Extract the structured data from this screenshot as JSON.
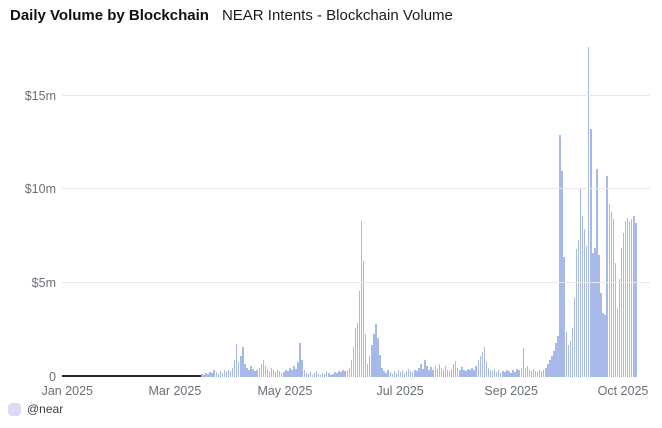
{
  "header": {
    "title": "Daily Volume by Blockchain",
    "subtitle": "NEAR Intents - Blockchain Volume"
  },
  "legend": {
    "items": [
      {
        "label": "@near",
        "swatch_color": "#dcdcf5"
      }
    ]
  },
  "chart_data": {
    "type": "bar",
    "title": "Daily Volume by Blockchain",
    "subtitle": "NEAR Intents - Blockchain Volume",
    "series_name": "@near",
    "unit": "USD millions per day",
    "x_start": "Jan 2025",
    "x_end": "Oct 2025",
    "ylim": [
      0,
      17.7
    ],
    "grid": true,
    "legend_position": "bottom-left",
    "bar_color": "#a7b9e9",
    "zero_line": {
      "color": "#2a2a2e",
      "span_index": [
        0,
        67
      ]
    },
    "yticks": [
      {
        "label": "0",
        "value": 0,
        "gridline": false
      },
      {
        "label": "$5m",
        "value": 5,
        "gridline": true
      },
      {
        "label": "$10m",
        "value": 10,
        "gridline": true
      },
      {
        "label": "$15m",
        "value": 15,
        "gridline": true
      }
    ],
    "xticks": [
      {
        "label": "Jan 2025",
        "pos": 0.009
      },
      {
        "label": "Mar 2025",
        "pos": 0.192
      },
      {
        "label": "May 2025",
        "pos": 0.379
      },
      {
        "label": "Jul 2025",
        "pos": 0.575
      },
      {
        "label": "Sep 2025",
        "pos": 0.764
      },
      {
        "label": "Oct 2025",
        "pos": 0.954
      }
    ],
    "values": [
      0.02,
      0.01,
      0.02,
      0.03,
      0.01,
      0.02,
      0.01,
      0.02,
      0.06,
      0.02,
      0.01,
      0.03,
      0.02,
      0.01,
      0.09,
      0.02,
      0.03,
      0.01,
      0.02,
      0.03,
      0.07,
      0.02,
      0.01,
      0.02,
      0.03,
      0.02,
      0.05,
      0.01,
      0.02,
      0.03,
      0.02,
      0.01,
      0.02,
      0.1,
      0.03,
      0.02,
      0.01,
      0.02,
      0.03,
      0.02,
      0.08,
      0.02,
      0.03,
      0.01,
      0.02,
      0.03,
      0.02,
      0.06,
      0.03,
      0.02,
      0.04,
      0.02,
      0.03,
      0.09,
      0.03,
      0.02,
      0.04,
      0.03,
      0.07,
      0.04,
      0.03,
      0.05,
      0.12,
      0.04,
      0.06,
      0.1,
      0.08,
      0.12,
      0.18,
      0.1,
      0.22,
      0.15,
      0.28,
      0.2,
      0.35,
      0.25,
      0.18,
      0.3,
      0.22,
      0.4,
      0.28,
      0.35,
      0.3,
      0.5,
      0.9,
      1.75,
      0.8,
      1.1,
      1.6,
      0.7,
      0.5,
      0.35,
      0.6,
      0.45,
      0.3,
      0.4,
      0.5,
      0.7,
      0.9,
      0.6,
      0.45,
      0.3,
      0.5,
      0.35,
      0.25,
      0.4,
      0.3,
      0.2,
      0.25,
      0.4,
      0.3,
      0.5,
      0.35,
      0.6,
      0.45,
      0.8,
      1.8,
      0.9,
      0.4,
      0.2,
      0.15,
      0.25,
      0.1,
      0.2,
      0.3,
      0.15,
      0.1,
      0.2,
      0.15,
      0.3,
      0.2,
      0.1,
      0.15,
      0.25,
      0.2,
      0.3,
      0.25,
      0.35,
      0.3,
      0.4,
      0.5,
      0.9,
      1.6,
      2.6,
      2.9,
      4.6,
      8.3,
      6.2,
      2.3,
      0.7,
      1.1,
      1.7,
      2.3,
      2.8,
      2.1,
      1.2,
      0.5,
      0.3,
      0.2,
      0.35,
      0.25,
      0.15,
      0.3,
      0.2,
      0.4,
      0.25,
      0.35,
      0.2,
      0.3,
      0.45,
      0.3,
      0.25,
      0.35,
      0.3,
      0.5,
      0.7,
      0.45,
      0.9,
      0.6,
      0.4,
      0.55,
      0.35,
      0.6,
      0.45,
      0.7,
      0.5,
      0.35,
      0.6,
      0.4,
      0.3,
      0.45,
      0.7,
      0.85,
      0.5,
      0.35,
      0.55,
      0.4,
      0.3,
      0.45,
      0.35,
      0.5,
      0.4,
      0.6,
      0.9,
      1.1,
      1.35,
      1.6,
      0.8,
      0.5,
      0.4,
      0.3,
      0.45,
      0.25,
      0.35,
      0.2,
      0.3,
      0.25,
      0.4,
      0.3,
      0.2,
      0.35,
      0.25,
      0.45,
      0.35,
      0.5,
      1.55,
      0.5,
      0.6,
      0.4,
      0.3,
      0.45,
      0.3,
      0.25,
      0.35,
      0.3,
      0.4,
      0.5,
      0.7,
      0.9,
      1.1,
      1.4,
      1.8,
      2.2,
      12.9,
      11.0,
      6.4,
      2.4,
      1.7,
      1.9,
      2.6,
      4.2,
      6.8,
      7.3,
      10.1,
      8.6,
      7.9,
      7.0,
      17.6,
      13.2,
      6.6,
      6.9,
      11.1,
      6.5,
      4.5,
      3.4,
      3.3,
      10.7,
      9.2,
      8.8,
      8.4,
      6.1,
      3.6,
      5.2,
      6.9,
      7.7,
      8.3,
      8.5,
      8.3,
      8.4,
      8.6,
      8.2
    ]
  }
}
